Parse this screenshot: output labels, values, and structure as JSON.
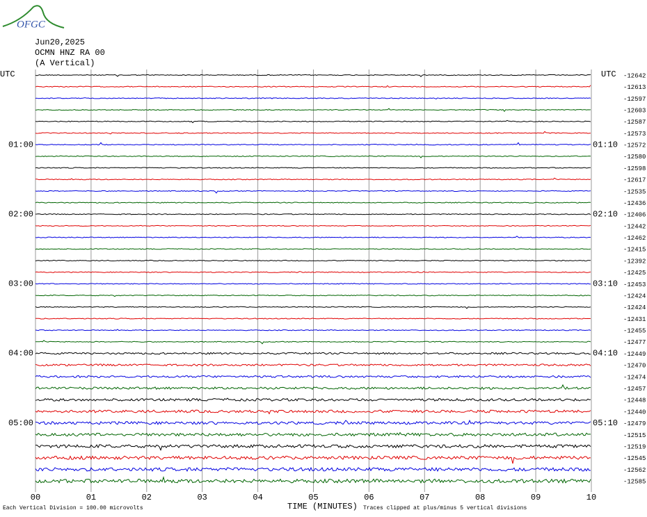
{
  "logo": "OFGC",
  "header": {
    "date": "Jun20,2025",
    "station": "OCMN HNZ RA 00",
    "component": "(A Vertical)"
  },
  "left_axis": {
    "title": "UTC",
    "labels": [
      {
        "row": 6,
        "text": "01:00"
      },
      {
        "row": 12,
        "text": "02:00"
      },
      {
        "row": 18,
        "text": "03:00"
      },
      {
        "row": 24,
        "text": "04:00"
      },
      {
        "row": 30,
        "text": "05:00"
      }
    ]
  },
  "right_axis": {
    "title": "UTC",
    "labels": [
      {
        "row": 6,
        "text": "01:10"
      },
      {
        "row": 12,
        "text": "02:10"
      },
      {
        "row": 18,
        "text": "03:10"
      },
      {
        "row": 24,
        "text": "04:10"
      },
      {
        "row": 30,
        "text": "05:10"
      }
    ]
  },
  "trace_offsets": [
    "-12642",
    "-12613",
    "-12597",
    "-12603",
    "-12587",
    "-12573",
    "-12572",
    "-12580",
    "-12598",
    "-12617",
    "-12535",
    "-12436",
    "-12406",
    "-12442",
    "-12462",
    "-12415",
    "-12392",
    "-12425",
    "-12453",
    "-12424",
    "-12424",
    "-12431",
    "-12455",
    "-12477",
    "-12449",
    "-12470",
    "-12474",
    "-12457",
    "-12448",
    "-12440",
    "-12479",
    "-12515",
    "-12519",
    "-12545",
    "-12562",
    "-12585"
  ],
  "x_ticks": [
    "00",
    "01",
    "02",
    "03",
    "04",
    "05",
    "06",
    "07",
    "08",
    "09",
    "10"
  ],
  "footer": {
    "scale": "Each Vertical Division =  100.00 microvolts",
    "x_title": "TIME (MINUTES)",
    "clip": "Traces clipped at plus/minus 5 vertical divisions"
  }
}
